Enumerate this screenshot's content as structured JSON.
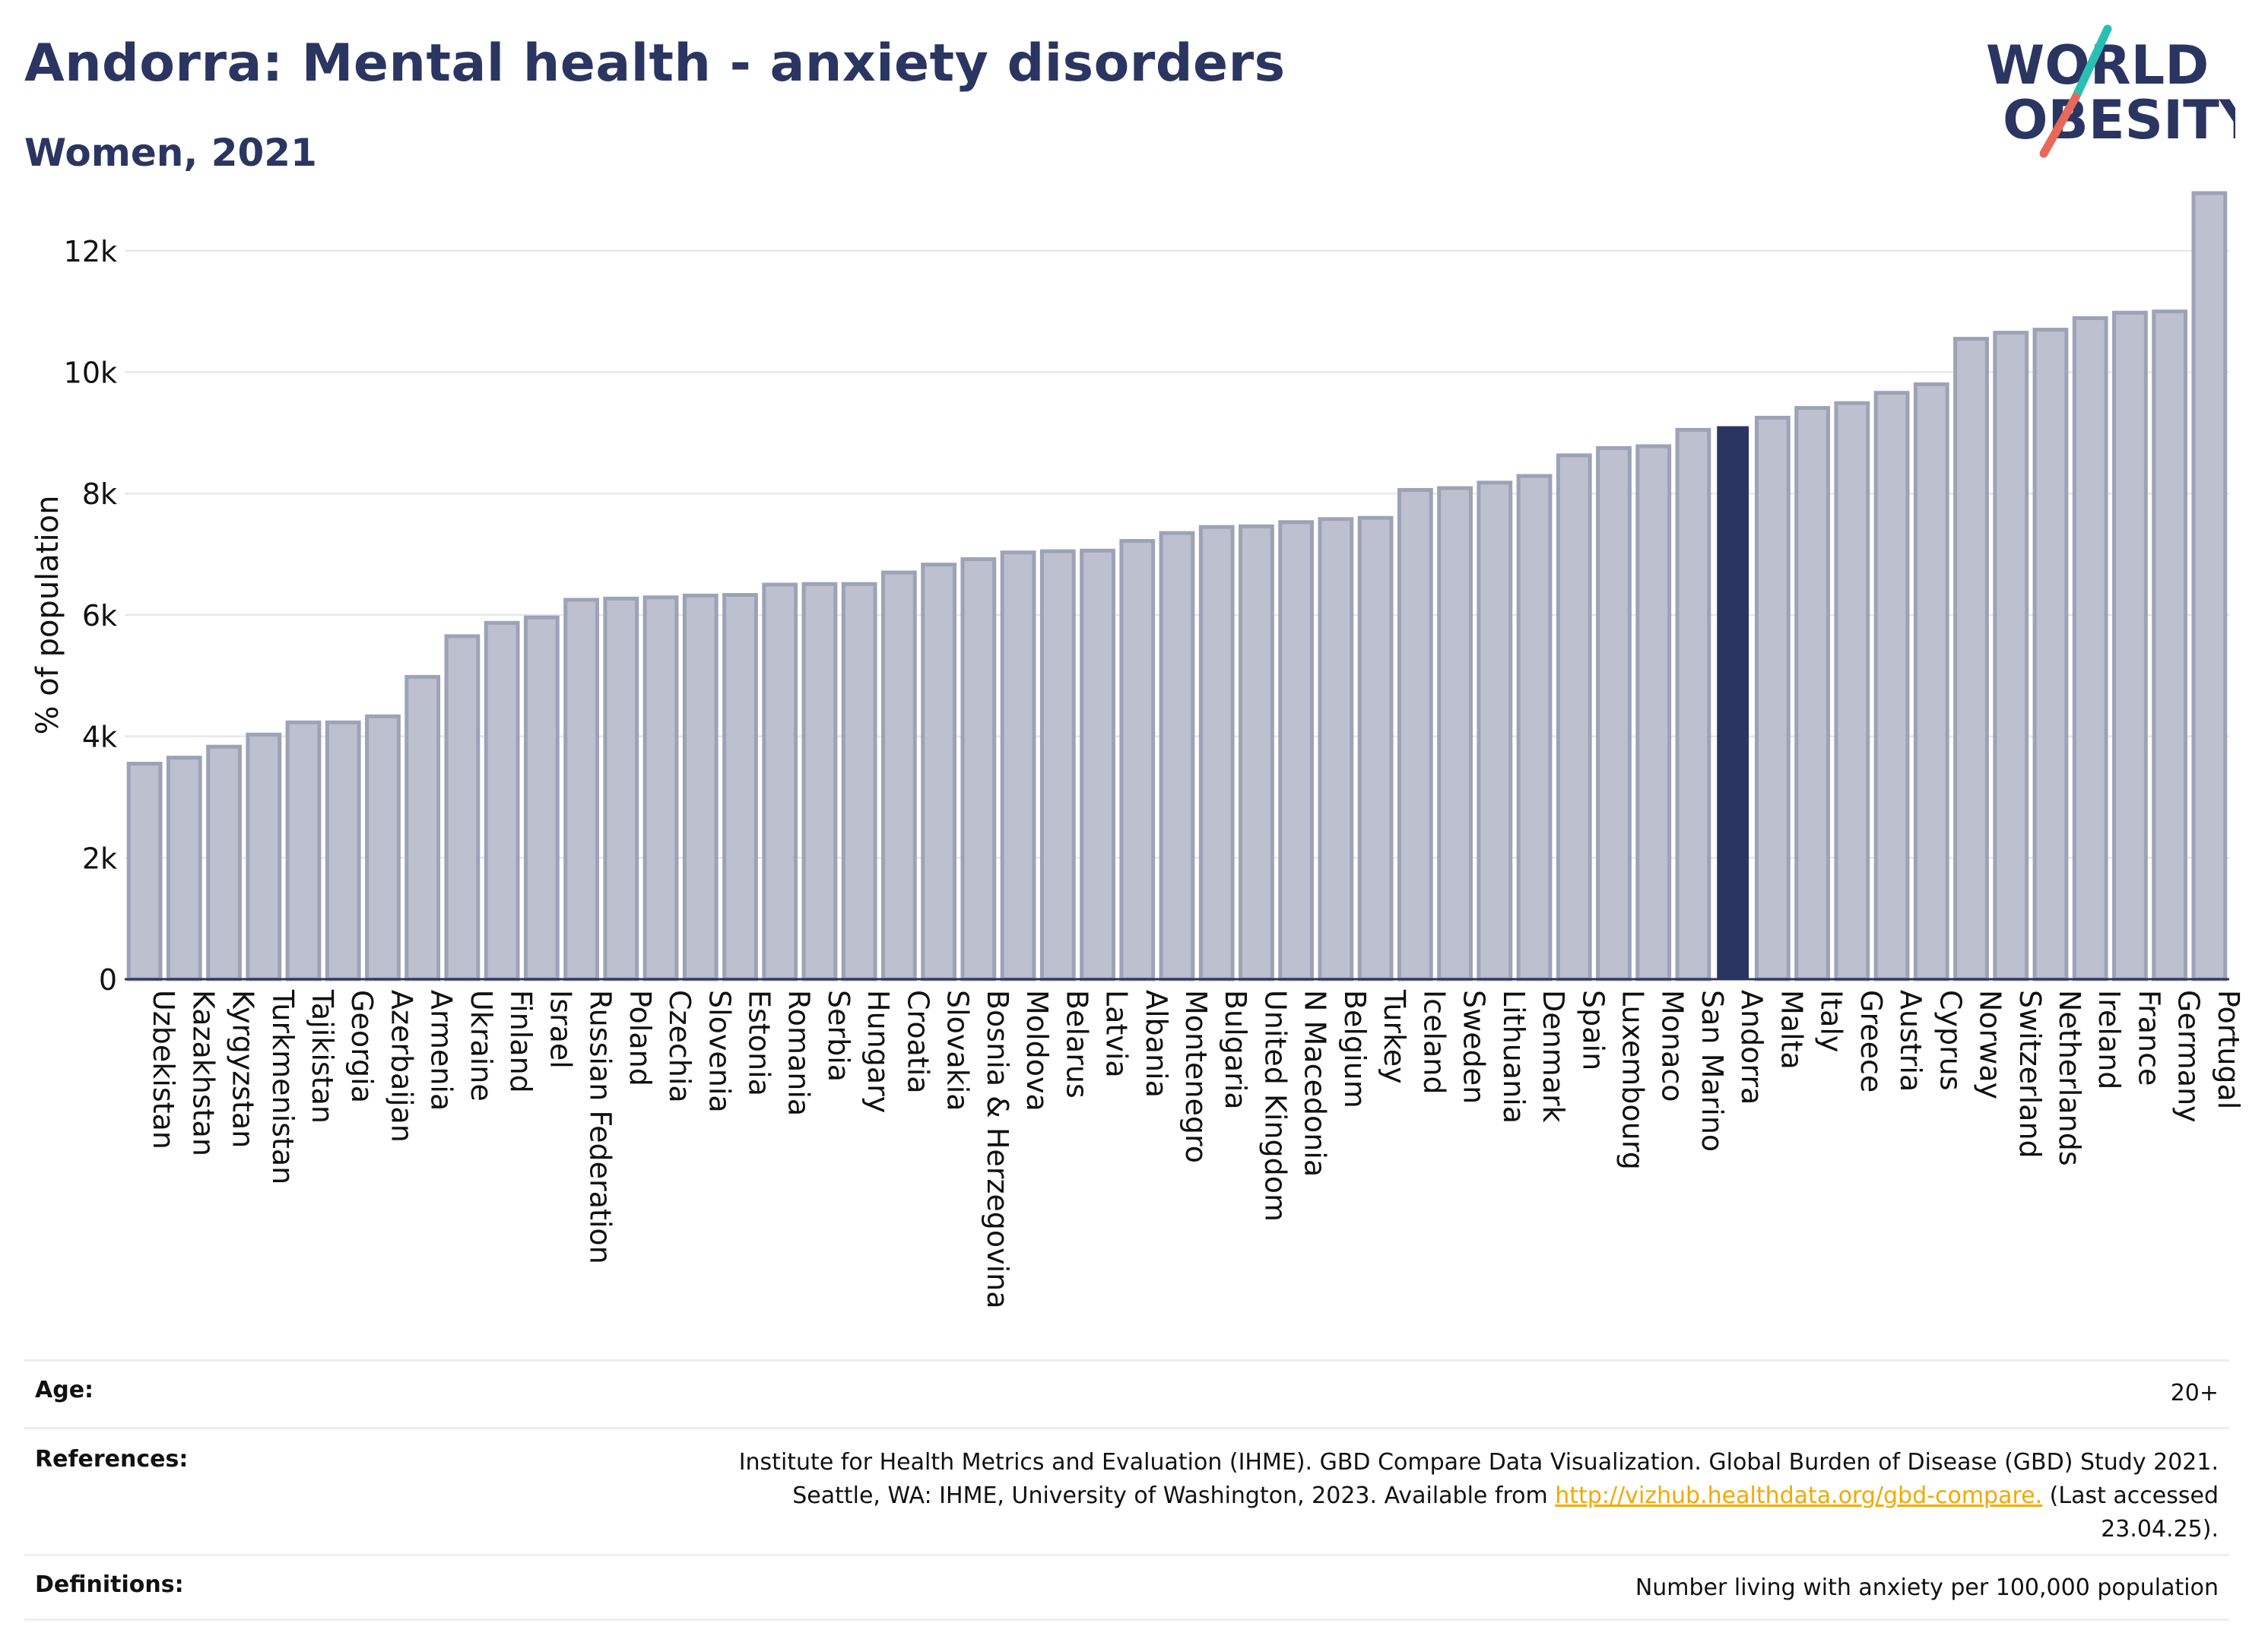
{
  "title": "Andorra: Mental health - anxiety disorders",
  "subtitle": "Women, 2021",
  "logo": {
    "line1": "WORLD",
    "line2": "OBESITY",
    "colors": {
      "text": "#2b3561",
      "slash_top": "#2bbfb4",
      "slash_bottom": "#e8685a"
    }
  },
  "colors": {
    "bar": "#bcc0cf",
    "bar_edge": "#9da2b6",
    "highlight": "#2b3561",
    "grid": "#e6e8ee",
    "link": "#f2a900"
  },
  "chart_data": {
    "type": "bar",
    "ylabel": "% of population",
    "xlabel": "",
    "ylim": [
      0,
      13000
    ],
    "yticks": [
      0,
      2000,
      4000,
      6000,
      8000,
      10000,
      12000
    ],
    "ytick_labels": [
      "0",
      "2k",
      "4k",
      "6k",
      "8k",
      "10k",
      "12k"
    ],
    "grid": true,
    "highlight": "Andorra",
    "categories": [
      "Uzbekistan",
      "Kazakhstan",
      "Kyrgyzstan",
      "Turkmenistan",
      "Tajikistan",
      "Georgia",
      "Azerbaijan",
      "Armenia",
      "Ukraine",
      "Finland",
      "Israel",
      "Russian Federation",
      "Poland",
      "Czechia",
      "Slovenia",
      "Estonia",
      "Romania",
      "Serbia",
      "Hungary",
      "Croatia",
      "Slovakia",
      "Bosnia & Herzegovina",
      "Moldova",
      "Belarus",
      "Latvia",
      "Albania",
      "Montenegro",
      "Bulgaria",
      "United Kingdom",
      "N Macedonia",
      "Belgium",
      "Turkey",
      "Iceland",
      "Sweden",
      "Lithuania",
      "Denmark",
      "Spain",
      "Luxembourg",
      "Monaco",
      "San Marino",
      "Andorra",
      "Malta",
      "Italy",
      "Greece",
      "Austria",
      "Cyprus",
      "Norway",
      "Switzerland",
      "Netherlands",
      "Ireland",
      "France",
      "Germany",
      "Portugal"
    ],
    "values": [
      3550,
      3650,
      3830,
      4030,
      4230,
      4230,
      4330,
      4980,
      5650,
      5870,
      5960,
      6250,
      6270,
      6290,
      6320,
      6330,
      6500,
      6510,
      6510,
      6700,
      6830,
      6920,
      7030,
      7050,
      7060,
      7220,
      7350,
      7450,
      7460,
      7530,
      7580,
      7600,
      8060,
      8090,
      8180,
      8290,
      8630,
      8750,
      8780,
      9050,
      9110,
      9250,
      9410,
      9490,
      9660,
      9800,
      10550,
      10650,
      10700,
      10890,
      10980,
      11000,
      12950
    ]
  },
  "footer": {
    "age": {
      "label": "Age:",
      "value": "20+"
    },
    "references": {
      "label": "References:",
      "line1": "Institute for Health Metrics and Evaluation (IHME). GBD Compare Data Visualization. Global Burden of Disease (GBD) Study 2021.",
      "line2_before": "Seattle, WA: IHME, University of Washington, 2023. Available from ",
      "link": "http://vizhub.healthdata.org/gbd-compare.",
      "line2_after": " (Last accessed",
      "line3": "23.04.25)."
    },
    "definitions": {
      "label": "Definitions:",
      "value": "Number living with anxiety per 100,000 population"
    }
  }
}
